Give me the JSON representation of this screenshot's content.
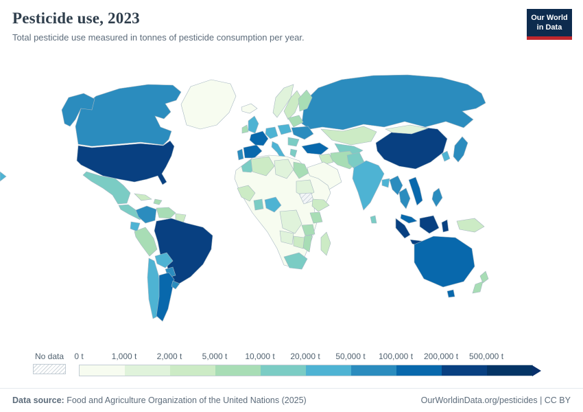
{
  "header": {
    "title": "Pesticide use, 2023",
    "subtitle": "Total pesticide use measured in tonnes of pesticide consumption per year.",
    "logo": {
      "line1": "Our World",
      "line2": "in Data",
      "bg": "#0d2b4e",
      "accent": "#c0272d"
    }
  },
  "chart_data": {
    "type": "choropleth",
    "title": "Pesticide use, 2023",
    "year": 2023,
    "unit": "tonnes of pesticide consumption per year",
    "no_data_label": "No data",
    "arrow_color": "#08306b",
    "legend_bins": [
      {
        "label": "0 t",
        "color": "#f7fcf0"
      },
      {
        "label": "1,000 t",
        "color": "#e0f3db"
      },
      {
        "label": "2,000 t",
        "color": "#ccebc5"
      },
      {
        "label": "5,000 t",
        "color": "#a8ddb5"
      },
      {
        "label": "10,000 t",
        "color": "#7bccc4"
      },
      {
        "label": "20,000 t",
        "color": "#4eb3d3"
      },
      {
        "label": "50,000 t",
        "color": "#2b8cbe"
      },
      {
        "label": "100,000 t",
        "color": "#0868ac"
      },
      {
        "label": "200,000 t",
        "color": "#084081"
      },
      {
        "label": "500,000 t",
        "color": "#043465"
      }
    ],
    "regions": {
      "alaska": "#2b8cbe",
      "canada": "#2b8cbe",
      "greenland": "#f7fcf0",
      "usa": "#084081",
      "mexico": "#7bccc4",
      "central-america": "#7bccc4",
      "cuba": "#ccebc5",
      "hispaniola": "#a8ddb5",
      "colombia": "#2b8cbe",
      "venezuela": "#a8ddb5",
      "guyanas": "#ccebc5",
      "ecuador": "#4eb3d3",
      "peru": "#a8ddb5",
      "brazil": "#084081",
      "bolivia": "#4eb3d3",
      "paraguay": "#2b8cbe",
      "chile": "#4eb3d3",
      "argentina": "#0868ac",
      "uruguay": "#2b8cbe",
      "iceland": "#f7fcf0",
      "uk": "#4eb3d3",
      "ireland": "#a8ddb5",
      "norway": "#e0f3db",
      "sweden": "#ccebc5",
      "finland": "#a8ddb5",
      "belarus-baltics": "#a8ddb5",
      "portugal": "#2b8cbe",
      "spain": "#0868ac",
      "france": "#0868ac",
      "germany": "#4eb3d3",
      "italy": "#4eb3d3",
      "poland": "#4eb3d3",
      "ukraine": "#2b8cbe",
      "balkans": "#7bccc4",
      "greece": "#7bccc4",
      "turkey": "#0868ac",
      "russia": "#2b8cbe",
      "kazakhstan": "#ccebc5",
      "central-asia": "#7bccc4",
      "iran": "#a8ddb5",
      "iraq": "#ccebc5",
      "saudi-arabia": "#f7fcf0",
      "africa-base": "#f7fcf0",
      "morocco": "#7bccc4",
      "algeria": "#ccebc5",
      "libya": "#e0f3db",
      "egypt": "#a8ddb5",
      "west-africa": "#ccebc5",
      "ghana": "#7bccc4",
      "nigeria": "#4eb3d3",
      "sudan": "#e0f3db",
      "south-sudan": "hatch",
      "ethiopia": "#ccebc5",
      "kenya": "#a8ddb5",
      "drc": "#e0f3db",
      "tanzania": "#a8ddb5",
      "angola": "#e0f3db",
      "zambia-zimbabwe": "#ccebc5",
      "mozambique": "#a8ddb5",
      "south-africa": "#7bccc4",
      "madagascar": "#ccebc5",
      "pakistan": "#7bccc4",
      "india": "#4eb3d3",
      "bangladesh": "#4eb3d3",
      "sri-lanka": "#7bccc4",
      "china": "#084081",
      "mongolia": "#e0f3db",
      "korea": "#4eb3d3",
      "japan": "#2b8cbe",
      "myanmar": "#2b8cbe",
      "thailand": "#2b8cbe",
      "vietnam": "#0868ac",
      "malaysia": "#0868ac",
      "sumatra": "#084081",
      "java": "#084081",
      "borneo": "#084081",
      "sulawesi": "#084081",
      "new-guinea": "#ccebc5",
      "philippines": "#2b8cbe",
      "australia": "#0868ac",
      "tasmania": "#0868ac",
      "new-zealand-north": "#a8ddb5",
      "new-zealand-south": "#a8ddb5"
    }
  },
  "footer": {
    "source_label": "Data source:",
    "source_text": " Food and Agriculture Organization of the United Nations (2025)",
    "link_text": "OurWorldinData.org/pesticides | CC BY"
  }
}
